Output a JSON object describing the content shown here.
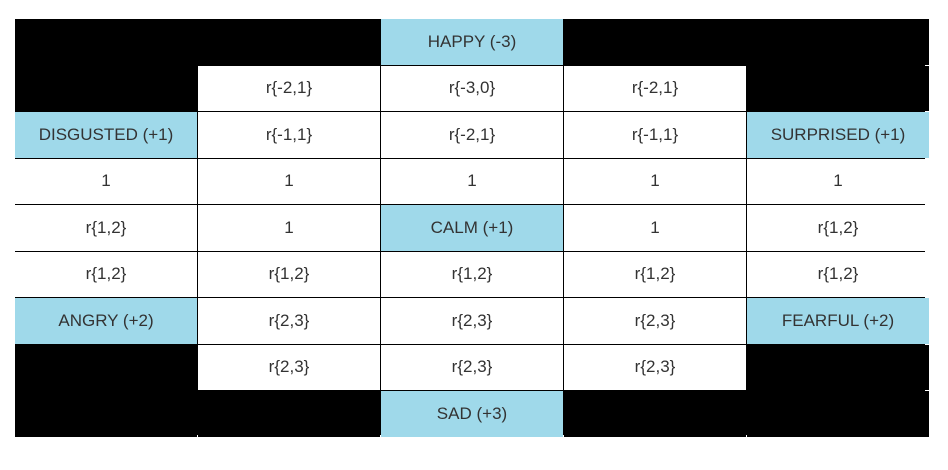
{
  "colors": {
    "white_cell": "#ffffff",
    "emotion_cell": "#9fd9ea",
    "empty_cell": "#000000",
    "text": "#333333"
  },
  "rows": [
    [
      "",
      "",
      "HAPPY (-3)",
      "",
      ""
    ],
    [
      "",
      "r{-2,1}",
      "r{-3,0}",
      "r{-2,1}",
      ""
    ],
    [
      "DISGUSTED (+1)",
      "r{-1,1}",
      "r{-2,1}",
      "r{-1,1}",
      "SURPRISED (+1)"
    ],
    [
      "1",
      "1",
      "1",
      "1",
      "1"
    ],
    [
      "r{1,2}",
      "1",
      "CALM (+1)",
      "1",
      "r{1,2}"
    ],
    [
      "r{1,2}",
      "r{1,2}",
      "r{1,2}",
      "r{1,2}",
      "r{1,2}"
    ],
    [
      "ANGRY (+2)",
      "r{2,3}",
      "r{2,3}",
      "r{2,3}",
      "FEARFUL (+2)"
    ],
    [
      "",
      "r{2,3}",
      "r{2,3}",
      "r{2,3}",
      ""
    ],
    [
      "",
      "",
      "SAD (+3)",
      "",
      ""
    ]
  ]
}
